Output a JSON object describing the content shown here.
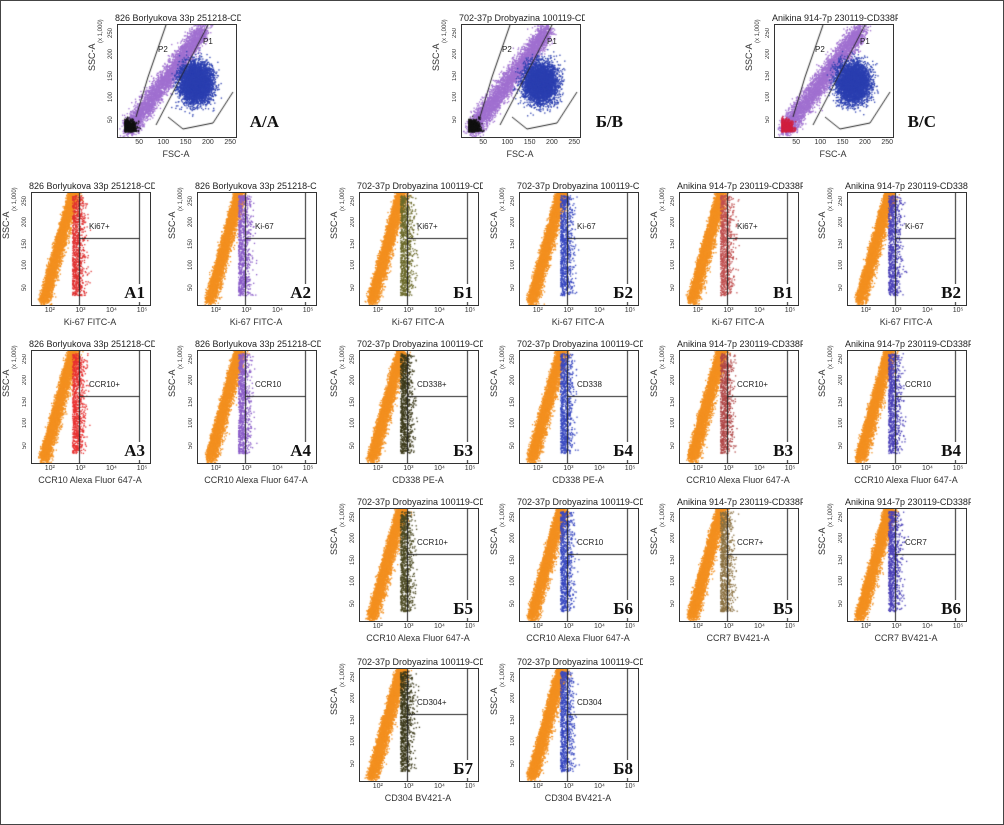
{
  "chart_data": [
    {
      "id": "A/A",
      "type": "scatter",
      "title": "826 Borlyukova 33p 251218-CD",
      "xlabel": "FSC-A",
      "ylabel": "SSC-A",
      "axis_multiplier": "(x 1,000)",
      "x_ticks": [
        "50",
        "100",
        "150",
        "200",
        "250"
      ],
      "y_ticks": [
        "50",
        "100",
        "150",
        "200",
        "250"
      ],
      "gates": [
        "P2",
        "P1"
      ],
      "kind": "gating",
      "colors": {
        "p1": "#2b3fb0",
        "p2": "#a070d0",
        "debris": "#111111"
      }
    },
    {
      "id": "Б/B",
      "type": "scatter",
      "title": "702-37p Drobyazina 100119-CD",
      "xlabel": "FSC-A",
      "ylabel": "SSC-A",
      "axis_multiplier": "(x 1,000)",
      "x_ticks": [
        "50",
        "100",
        "150",
        "200",
        "250"
      ],
      "y_ticks": [
        "50",
        "100",
        "150",
        "200",
        "250"
      ],
      "gates": [
        "P2",
        "P1"
      ],
      "kind": "gating",
      "colors": {
        "p1": "#2b3fb0",
        "p2": "#a070d0",
        "debris": "#111111"
      }
    },
    {
      "id": "B/C",
      "type": "scatter",
      "title": "Anikina 914-7p 230119-CD338P",
      "xlabel": "FSC-A",
      "ylabel": "SSC-A",
      "axis_multiplier": "(x 1,000)",
      "x_ticks": [
        "50",
        "100",
        "150",
        "200",
        "250"
      ],
      "y_ticks": [
        "50",
        "100",
        "150",
        "200",
        "250"
      ],
      "gates": [
        "P2",
        "P1"
      ],
      "kind": "gating",
      "colors": {
        "p1": "#2b3fb0",
        "p2": "#a070d0",
        "debris": "#d02040"
      }
    },
    {
      "id": "A1",
      "type": "scatter",
      "title": "826 Borlyukova 33p 251218-CD",
      "xlabel": "Ki-67 FITC-A",
      "ylabel": "SSC-A",
      "axis_multiplier": "(x 1,000)",
      "x_ticks": [
        "10²",
        "10³",
        "10⁴",
        "10⁵"
      ],
      "y_ticks": [
        "50",
        "100",
        "150",
        "200",
        "250"
      ],
      "gate_label": "Ki67+",
      "kind": "marker",
      "colors": {
        "neg": "#f39020",
        "pos": "#e03030"
      }
    },
    {
      "id": "A2",
      "type": "scatter",
      "title": "826 Borlyukova 33p 251218-C",
      "xlabel": "Ki-67 FITC-A",
      "ylabel": "SSC-A",
      "axis_multiplier": "(x 1,000)",
      "x_ticks": [
        "10²",
        "10³",
        "10⁴",
        "10⁵"
      ],
      "y_ticks": [
        "50",
        "100",
        "150",
        "200",
        "250"
      ],
      "gate_label": "Ki-67",
      "kind": "marker",
      "colors": {
        "neg": "#f39020",
        "pos": "#8a5cc8"
      }
    },
    {
      "id": "Б1",
      "type": "scatter",
      "title": "702-37p Drobyazina 100119-CD",
      "xlabel": "Ki-67 FITC-A",
      "ylabel": "SSC-A",
      "axis_multiplier": "(x 1,000)",
      "x_ticks": [
        "10²",
        "10³",
        "10⁴",
        "10⁵"
      ],
      "y_ticks": [
        "50",
        "100",
        "150",
        "200",
        "250"
      ],
      "gate_label": "Ki67+",
      "kind": "marker",
      "colors": {
        "neg": "#f39020",
        "pos": "#6b6a2a"
      }
    },
    {
      "id": "Б2",
      "type": "scatter",
      "title": "702-37p Drobyazina 100119-C",
      "xlabel": "Ki-67 FITC-A",
      "ylabel": "SSC-A",
      "axis_multiplier": "(x 1,000)",
      "x_ticks": [
        "10²",
        "10³",
        "10⁴",
        "10⁵"
      ],
      "y_ticks": [
        "50",
        "100",
        "150",
        "200",
        "250"
      ],
      "gate_label": "Ki-67",
      "kind": "marker",
      "colors": {
        "neg": "#f39020",
        "pos": "#3848c0"
      }
    },
    {
      "id": "B1",
      "type": "scatter",
      "title": "Anikina 914-7p 230119-CD338P",
      "xlabel": "Ki-67 FITC-A",
      "ylabel": "SSC-A",
      "axis_multiplier": "(x 1,000)",
      "x_ticks": [
        "10²",
        "10³",
        "10⁴",
        "10⁵"
      ],
      "y_ticks": [
        "50",
        "100",
        "150",
        "200",
        "250"
      ],
      "gate_label": "Ki67+",
      "kind": "marker",
      "colors": {
        "neg": "#f39020",
        "pos": "#c05050"
      }
    },
    {
      "id": "B2",
      "type": "scatter",
      "title": "Anikina 914-7p 230119-CD338",
      "xlabel": "Ki-67 FITC-A",
      "ylabel": "SSC-A",
      "axis_multiplier": "(x 1,000)",
      "x_ticks": [
        "10²",
        "10³",
        "10⁴",
        "10⁵"
      ],
      "y_ticks": [
        "50",
        "100",
        "150",
        "200",
        "250"
      ],
      "gate_label": "Ki-67",
      "kind": "marker",
      "colors": {
        "neg": "#f39020",
        "pos": "#4a40b8"
      }
    },
    {
      "id": "A3",
      "type": "scatter",
      "title": "826 Borlyukova 33p 251218-CD",
      "xlabel": "CCR10 Alexa Fluor 647-A",
      "ylabel": "SSC-A",
      "axis_multiplier": "(x 1,000)",
      "x_ticks": [
        "10²",
        "10³",
        "10⁴",
        "10⁵"
      ],
      "y_ticks": [
        "50",
        "100",
        "150",
        "200",
        "250"
      ],
      "gate_label": "CCR10+",
      "kind": "marker",
      "colors": {
        "neg": "#f39020",
        "pos": "#e83030"
      }
    },
    {
      "id": "A4",
      "type": "scatter",
      "title": "826 Borlyukova 33p 251218-CD",
      "xlabel": "CCR10 Alexa Fluor 647-A",
      "ylabel": "SSC-A",
      "axis_multiplier": "(x 1,000)",
      "x_ticks": [
        "10²",
        "10³",
        "10⁴",
        "10⁵"
      ],
      "y_ticks": [
        "50",
        "100",
        "150",
        "200",
        "250"
      ],
      "gate_label": "CCR10",
      "kind": "marker",
      "colors": {
        "neg": "#f39020",
        "pos": "#8a5cc8"
      }
    },
    {
      "id": "Б3",
      "type": "scatter",
      "title": "702-37p Drobyazina 100119-CD",
      "xlabel": "CD338 PE-A",
      "ylabel": "SSC-A",
      "axis_multiplier": "(x 1,000)",
      "x_ticks": [
        "10²",
        "10³",
        "10⁴",
        "10⁵"
      ],
      "y_ticks": [
        "50",
        "100",
        "150",
        "200",
        "250"
      ],
      "gate_label": "CD338+",
      "kind": "marker",
      "colors": {
        "neg": "#f39020",
        "pos": "#3a3818"
      }
    },
    {
      "id": "Б4",
      "type": "scatter",
      "title": "702-37p Drobyazina 100119-CD",
      "xlabel": "CD338 PE-A",
      "ylabel": "SSC-A",
      "axis_multiplier": "(x 1,000)",
      "x_ticks": [
        "10²",
        "10³",
        "10⁴",
        "10⁵"
      ],
      "y_ticks": [
        "50",
        "100",
        "150",
        "200",
        "250"
      ],
      "gate_label": "CD338",
      "kind": "marker",
      "colors": {
        "neg": "#f39020",
        "pos": "#3848c0"
      }
    },
    {
      "id": "B3",
      "type": "scatter",
      "title": "Anikina 914-7p 230119-CD338P",
      "xlabel": "CCR10 Alexa Fluor 647-A",
      "ylabel": "SSC-A",
      "axis_multiplier": "(x 1,000)",
      "x_ticks": [
        "10²",
        "10³",
        "10⁴",
        "10⁵"
      ],
      "y_ticks": [
        "50",
        "100",
        "150",
        "200",
        "250"
      ],
      "gate_label": "CCR10+",
      "kind": "marker",
      "colors": {
        "neg": "#f39020",
        "pos": "#b04848"
      }
    },
    {
      "id": "B4",
      "type": "scatter",
      "title": "Anikina 914-7p 230119-CD338P",
      "xlabel": "CCR10 Alexa Fluor 647-A",
      "ylabel": "SSC-A",
      "axis_multiplier": "(x 1,000)",
      "x_ticks": [
        "10²",
        "10³",
        "10⁴",
        "10⁵"
      ],
      "y_ticks": [
        "50",
        "100",
        "150",
        "200",
        "250"
      ],
      "gate_label": "CCR10",
      "kind": "marker",
      "colors": {
        "neg": "#f39020",
        "pos": "#4a40b8"
      }
    },
    {
      "id": "Б5",
      "type": "scatter",
      "title": "702-37p Drobyazina 100119-CD",
      "xlabel": "CCR10 Alexa Fluor 647-A",
      "ylabel": "SSC-A",
      "axis_multiplier": "(x 1,000)",
      "x_ticks": [
        "10²",
        "10³",
        "10⁴",
        "10⁵"
      ],
      "y_ticks": [
        "50",
        "100",
        "150",
        "200",
        "250"
      ],
      "gate_label": "CCR10+",
      "kind": "marker",
      "colors": {
        "neg": "#f39020",
        "pos": "#4a4820"
      }
    },
    {
      "id": "Б6",
      "type": "scatter",
      "title": "702-37p Drobyazina 100119-CD",
      "xlabel": "CCR10 Alexa Fluor 647-A",
      "ylabel": "SSC-A",
      "axis_multiplier": "(x 1,000)",
      "x_ticks": [
        "10²",
        "10³",
        "10⁴",
        "10⁵"
      ],
      "y_ticks": [
        "50",
        "100",
        "150",
        "200",
        "250"
      ],
      "gate_label": "CCR10",
      "kind": "marker",
      "colors": {
        "neg": "#f39020",
        "pos": "#3848c0"
      }
    },
    {
      "id": "B5",
      "type": "scatter",
      "title": "Anikina 914-7p 230119-CD338P",
      "xlabel": "CCR7 BV421-A",
      "ylabel": "SSC-A",
      "axis_multiplier": "(x 1,000)",
      "x_ticks": [
        "10²",
        "10³",
        "10⁴",
        "10⁵"
      ],
      "y_ticks": [
        "50",
        "100",
        "150",
        "200",
        "250"
      ],
      "gate_label": "CCR7+",
      "kind": "marker",
      "colors": {
        "neg": "#f39020",
        "pos": "#8a7040"
      }
    },
    {
      "id": "B6",
      "type": "scatter",
      "title": "Anikina 914-7p 230119-CD338P",
      "xlabel": "CCR7 BV421-A",
      "ylabel": "SSC-A",
      "axis_multiplier": "(x 1,000)",
      "x_ticks": [
        "10²",
        "10³",
        "10⁴",
        "10⁵"
      ],
      "y_ticks": [
        "50",
        "100",
        "150",
        "200",
        "250"
      ],
      "gate_label": "CCR7",
      "kind": "marker",
      "colors": {
        "neg": "#f39020",
        "pos": "#4a40b8"
      }
    },
    {
      "id": "Б7",
      "type": "scatter",
      "title": "702-37p Drobyazina 100119-CD",
      "xlabel": "CD304 BV421-A",
      "ylabel": "SSC-A",
      "axis_multiplier": "(x 1,000)",
      "x_ticks": [
        "10²",
        "10³",
        "10⁴",
        "10⁵"
      ],
      "y_ticks": [
        "50",
        "100",
        "150",
        "200",
        "250"
      ],
      "gate_label": "CD304+",
      "kind": "marker",
      "colors": {
        "neg": "#f39020",
        "pos": "#3a3818"
      }
    },
    {
      "id": "Б8",
      "type": "scatter",
      "title": "702-37p Drobyazina 100119-CD",
      "xlabel": "CD304 BV421-A",
      "ylabel": "SSC-A",
      "axis_multiplier": "(x 1,000)",
      "x_ticks": [
        "10²",
        "10³",
        "10⁴",
        "10⁵"
      ],
      "y_ticks": [
        "50",
        "100",
        "150",
        "200",
        "250"
      ],
      "gate_label": "CD304",
      "kind": "marker",
      "colors": {
        "neg": "#f39020",
        "pos": "#3848c0"
      }
    }
  ]
}
